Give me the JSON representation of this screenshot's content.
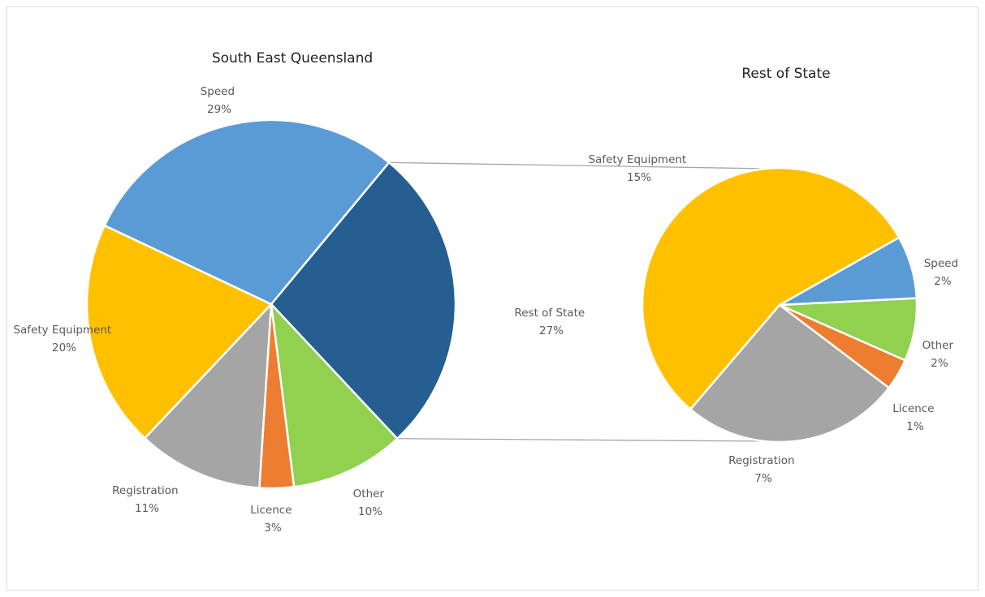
{
  "colors": {
    "speed": "#5b9bd5",
    "safety": "#ffc000",
    "registration": "#a5a5a5",
    "licence": "#ed7d31",
    "other": "#92d050",
    "rest_of_state": "#255e91",
    "connector": "#a6a6a6"
  },
  "chart_data": [
    {
      "type": "pie",
      "title": "South East Queensland",
      "slices": [
        {
          "key": "rest",
          "label": "Rest of State",
          "value": 27,
          "pct_label": "27%",
          "color_key": "rest_of_state"
        },
        {
          "key": "other",
          "label": "Other",
          "value": 10,
          "pct_label": "10%",
          "color_key": "other"
        },
        {
          "key": "licence",
          "label": "Licence",
          "value": 3,
          "pct_label": "3%",
          "color_key": "licence"
        },
        {
          "key": "registration",
          "label": "Registration",
          "value": 11,
          "pct_label": "11%",
          "color_key": "registration"
        },
        {
          "key": "safety",
          "label": "Safety Equipment",
          "value": 20,
          "pct_label": "20%",
          "color_key": "safety"
        },
        {
          "key": "speed",
          "label": "Speed",
          "value": 29,
          "pct_label": "29%",
          "color_key": "speed"
        }
      ]
    },
    {
      "type": "pie",
      "title": "Rest of State",
      "slices": [
        {
          "key": "speed",
          "label": "Speed",
          "value": 2,
          "pct_label": "2%",
          "color_key": "speed"
        },
        {
          "key": "other",
          "label": "Other",
          "value": 2,
          "pct_label": "2%",
          "color_key": "other"
        },
        {
          "key": "licence",
          "label": "Licence",
          "value": 1,
          "pct_label": "1%",
          "color_key": "licence"
        },
        {
          "key": "registration",
          "label": "Registration",
          "value": 7,
          "pct_label": "7%",
          "color_key": "registration"
        },
        {
          "key": "safety",
          "label": "Safety Equipment",
          "value": 15,
          "pct_label": "15%",
          "color_key": "safety"
        }
      ]
    }
  ]
}
